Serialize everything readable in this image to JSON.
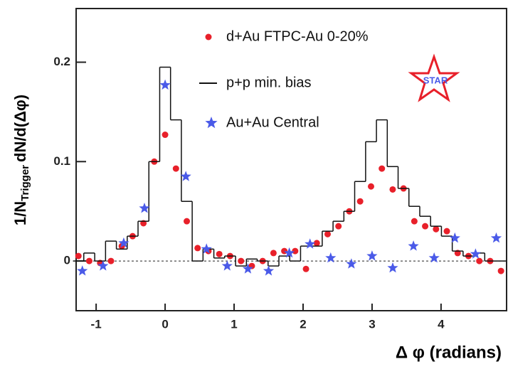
{
  "chart_data": {
    "type": "scatter",
    "x_label": "Δ φ (radians)",
    "y_label": {
      "main": "1/N",
      "sub": "Trigger",
      "rest": "dN/d(Δφ)"
    },
    "logo_text": "STAR",
    "xlim": [
      -1.29,
      4.95
    ],
    "ylim": [
      -0.05,
      0.254
    ],
    "xticks": [
      -1,
      0,
      1,
      2,
      3,
      4
    ],
    "yticks": [
      0,
      0.1,
      0.2
    ],
    "reference_line": 0,
    "series": [
      {
        "name": "d+Au FTPC-Au 0-20%",
        "color": "#e8202a",
        "marker": "circle",
        "x": [
          -1.257,
          -1.1,
          -0.942,
          -0.785,
          -0.628,
          -0.471,
          -0.314,
          -0.157,
          0,
          0.157,
          0.314,
          0.471,
          0.628,
          0.785,
          0.942,
          1.1,
          1.257,
          1.414,
          1.571,
          1.728,
          1.885,
          2.042,
          2.199,
          2.356,
          2.513,
          2.67,
          2.827,
          2.985,
          3.142,
          3.299,
          3.456,
          3.613,
          3.77,
          3.927,
          4.084,
          4.241,
          4.398,
          4.555,
          4.712,
          4.869
        ],
        "values": [
          0.005,
          0,
          -0.002,
          0,
          0.015,
          0.025,
          0.038,
          0.1,
          0.127,
          0.093,
          0.04,
          0.013,
          0.01,
          0.007,
          0.005,
          0,
          -0.005,
          0,
          0.008,
          0.01,
          0.01,
          -0.008,
          0.018,
          0.027,
          0.035,
          0.05,
          0.06,
          0.075,
          0.093,
          0.072,
          0.073,
          0.04,
          0.035,
          0.032,
          0.03,
          0.008,
          0.005,
          0,
          0,
          -0.01
        ]
      },
      {
        "name": "p+p min. bias",
        "color": "#111111",
        "marker": "histogram",
        "x": [
          -1.257,
          -1.1,
          -0.942,
          -0.785,
          -0.628,
          -0.471,
          -0.314,
          -0.157,
          0,
          0.157,
          0.314,
          0.471,
          0.628,
          0.785,
          0.942,
          1.1,
          1.257,
          1.414,
          1.571,
          1.728,
          1.885,
          2.042,
          2.199,
          2.356,
          2.513,
          2.67,
          2.827,
          2.985,
          3.142,
          3.299,
          3.456,
          3.613,
          3.77,
          3.927,
          4.084,
          4.241,
          4.398,
          4.555,
          4.712,
          4.869
        ],
        "values": [
          0,
          0.008,
          0,
          0.02,
          0.012,
          0.025,
          0.04,
          0.1,
          0.195,
          0.142,
          0.06,
          0,
          0.012,
          0.003,
          0.005,
          -0.005,
          0.002,
          0,
          -0.005,
          0.005,
          0,
          0.015,
          0.015,
          0.03,
          0.04,
          0.05,
          0.08,
          0.12,
          0.142,
          0.095,
          0.073,
          0.055,
          0.045,
          0.035,
          0.025,
          0.01,
          0.005,
          0.008,
          0,
          0
        ]
      },
      {
        "name": "Au+Au Central",
        "color": "#4a5ae8",
        "marker": "star",
        "x": [
          -1.2,
          -0.9,
          -0.6,
          -0.3,
          0,
          0.3,
          0.6,
          0.9,
          1.2,
          1.5,
          1.8,
          2.1,
          2.4,
          2.7,
          3.0,
          3.3,
          3.6,
          3.9,
          4.2,
          4.5,
          4.8
        ],
        "values": [
          -0.01,
          -0.005,
          0.018,
          0.053,
          0.177,
          0.085,
          0.012,
          -0.005,
          -0.008,
          -0.01,
          0.008,
          0.017,
          0.003,
          -0.003,
          0.005,
          -0.007,
          0.015,
          0.003,
          0.023,
          0.007,
          0.023
        ]
      }
    ]
  }
}
